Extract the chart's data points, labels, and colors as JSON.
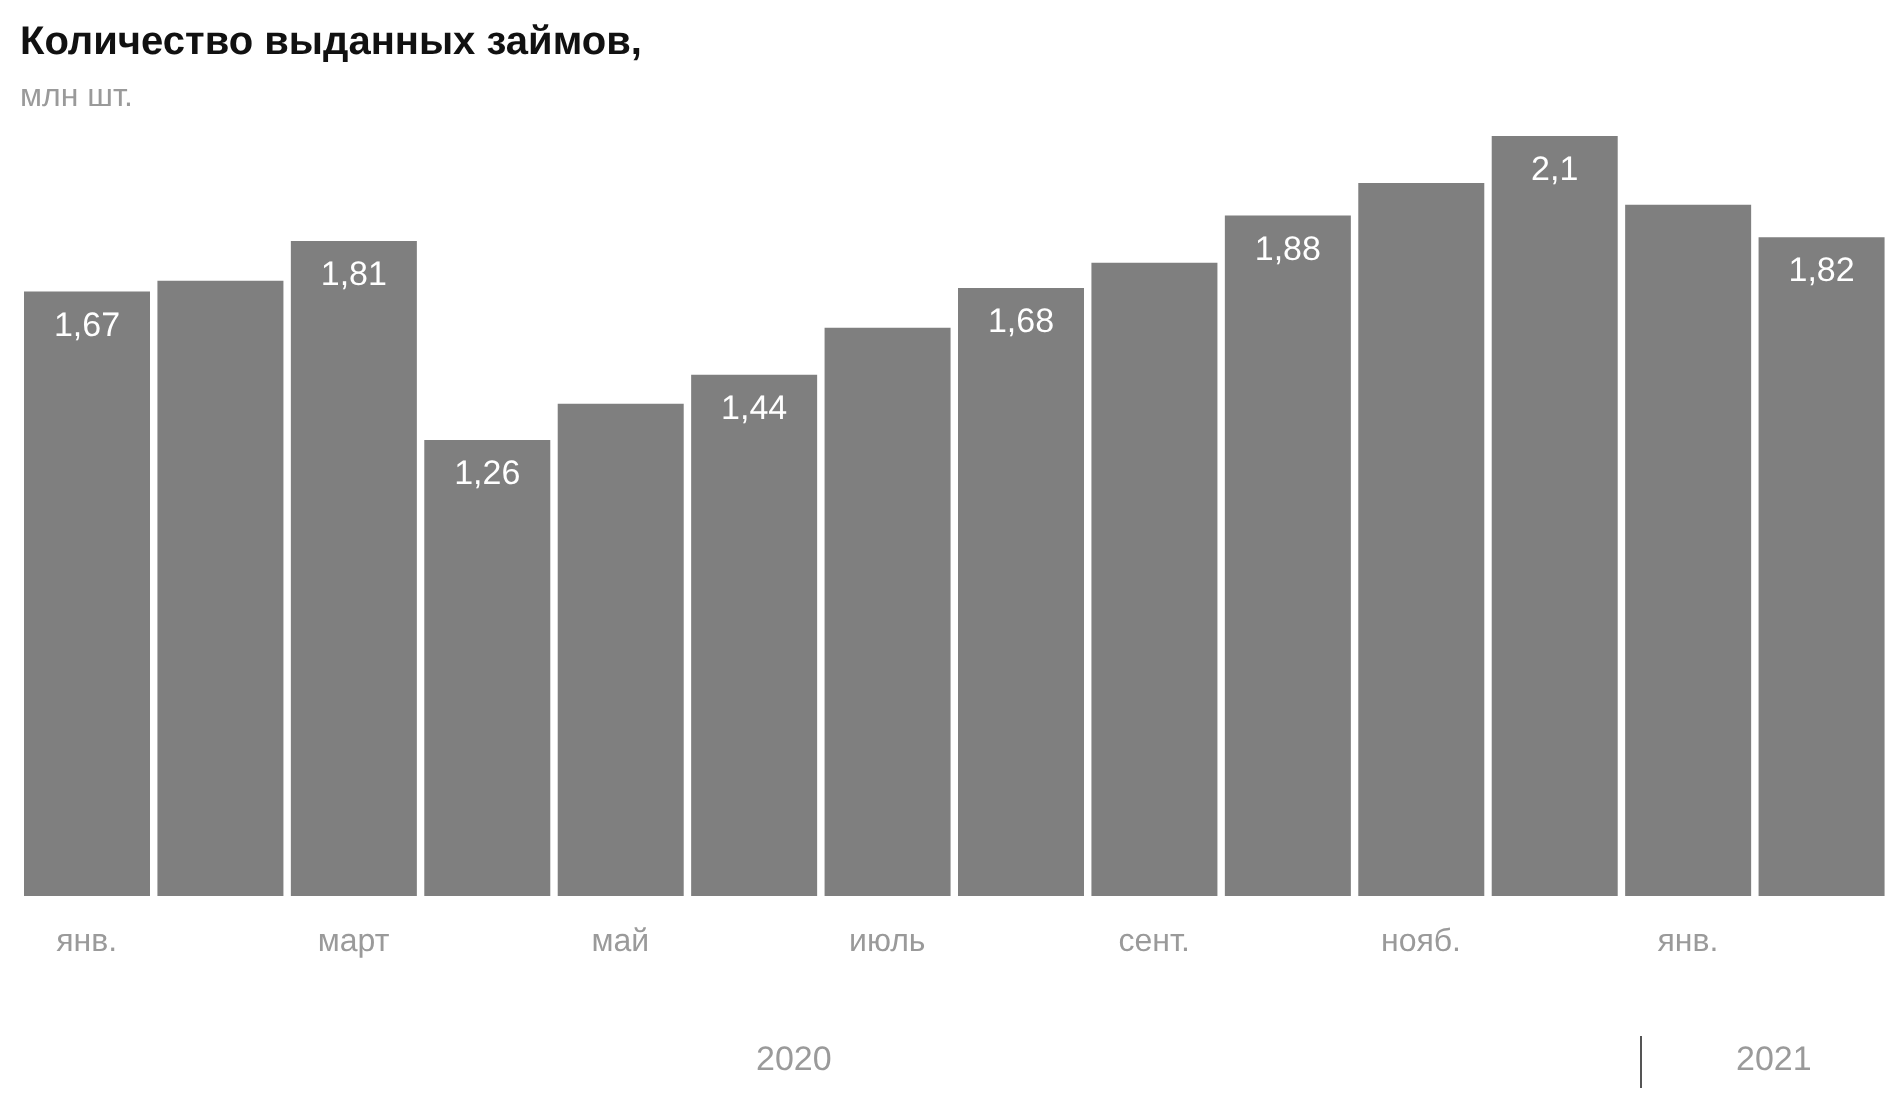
{
  "chart_data": {
    "type": "bar",
    "title": "Количество выданных займов,",
    "subtitle": "млн шт.",
    "categories": [
      "янв.",
      null,
      "март",
      null,
      "май",
      null,
      "июль",
      null,
      "сент.",
      null,
      "нояб.",
      null,
      "янв.",
      null
    ],
    "values": [
      1.67,
      1.7,
      1.81,
      1.26,
      1.36,
      1.44,
      1.57,
      1.68,
      1.75,
      1.88,
      1.97,
      2.1,
      1.91,
      1.82
    ],
    "value_labels": [
      "1,67",
      null,
      "1,81",
      "1,26",
      null,
      "1,44",
      null,
      "1,68",
      null,
      "1,88",
      null,
      "2,1",
      null,
      "1,82"
    ],
    "color": "#7f7f7f",
    "annotations": [
      "2020",
      "2021"
    ]
  }
}
